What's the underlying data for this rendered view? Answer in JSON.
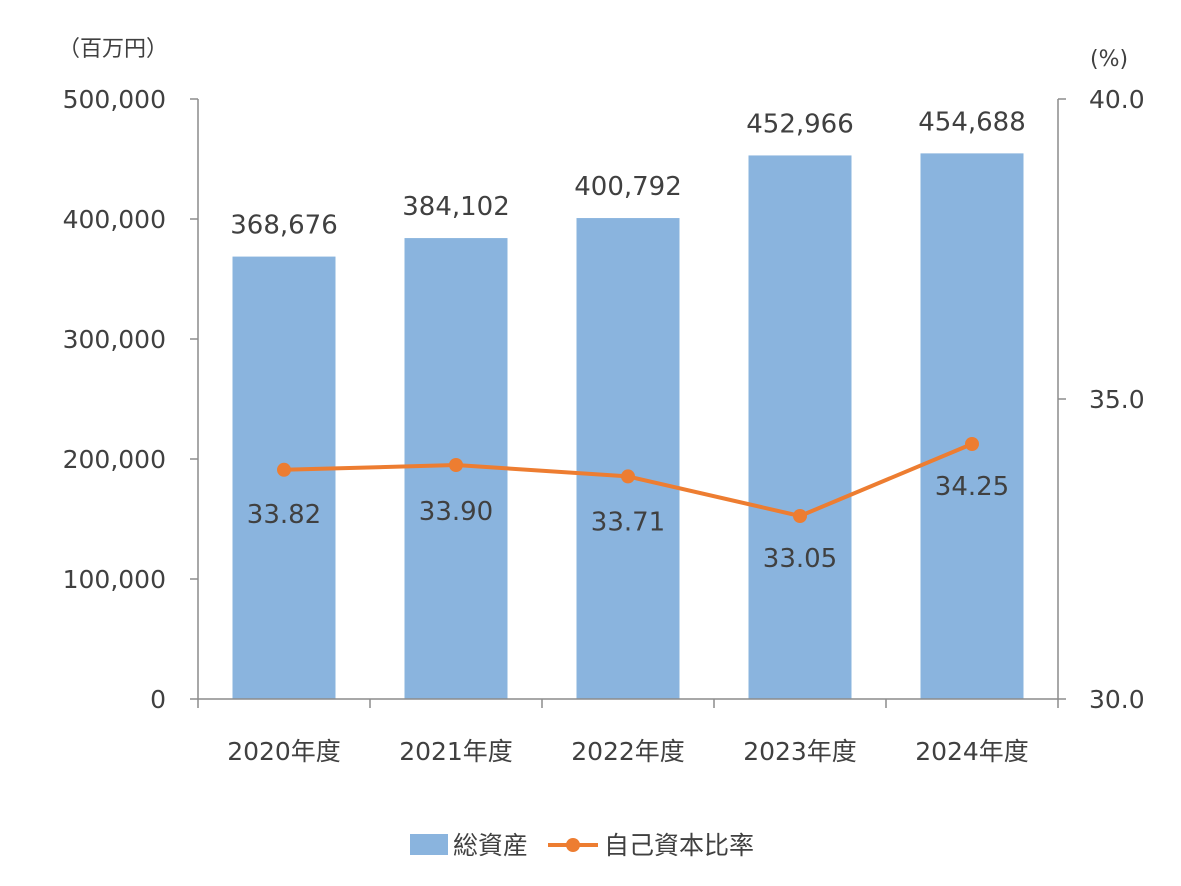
{
  "chart_data": {
    "type": "bar",
    "categories": [
      "2020年度",
      "2021年度",
      "2022年度",
      "2023年度",
      "2024年度"
    ],
    "series": [
      {
        "name": "総資産",
        "type": "bar",
        "axis": "left",
        "values": [
          368676,
          384102,
          400792,
          452966,
          454688
        ],
        "labels": [
          "368,676",
          "384,102",
          "400,792",
          "452,966",
          "454,688"
        ],
        "color": "#8AB4DE"
      },
      {
        "name": "自己資本比率",
        "type": "line",
        "axis": "right",
        "values": [
          33.82,
          33.9,
          33.71,
          33.05,
          34.25
        ],
        "labels": [
          "33.82",
          "33.90",
          "33.71",
          "33.05",
          "34.25"
        ],
        "color": "#ED7D31"
      }
    ],
    "left_axis": {
      "unit": "（百万円）",
      "ylim": [
        0,
        500000
      ],
      "ticks": [
        0,
        100000,
        200000,
        300000,
        400000,
        500000
      ],
      "tick_labels": [
        "0",
        "100,000",
        "200,000",
        "300,000",
        "400,000",
        "500,000"
      ]
    },
    "right_axis": {
      "unit": "(%)",
      "ylim": [
        30,
        40
      ],
      "ticks": [
        30,
        35,
        40
      ],
      "tick_labels": [
        "30.0",
        "35.0",
        "40.0"
      ]
    },
    "grid": false,
    "legend_position": "bottom",
    "colors": {
      "axis": "#8C8C8C",
      "text": "#404040"
    }
  }
}
